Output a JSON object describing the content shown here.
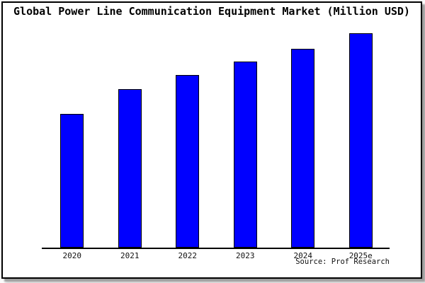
{
  "page": {
    "background_color": "#fbfbfb",
    "frame_border_color": "#000000",
    "frame_shadow_color": "#9e9e9e",
    "plot_background_color": "#ffffff"
  },
  "chart_data": {
    "type": "bar",
    "title": "Global Power Line Communication Equipment Market (Million USD)",
    "categories": [
      "2020",
      "2021",
      "2022",
      "2023",
      "2024",
      "2025e"
    ],
    "values": [
      189,
      224,
      244,
      263,
      281,
      303
    ],
    "value_note": "relative bar heights in px; chart shows no y-axis or value labels",
    "xlabel": "",
    "ylabel": "",
    "ylim": [
      0,
      310
    ],
    "grid": false,
    "legend": false,
    "bar_color": "#0000ff",
    "bar_border_color": "#000000",
    "axis_color": "#000000",
    "source": "Source: Prof Research"
  }
}
